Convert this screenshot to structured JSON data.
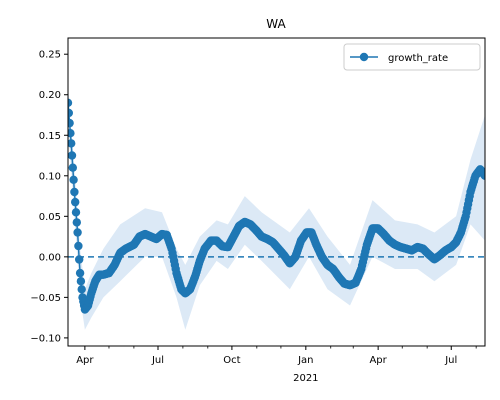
{
  "chart_data": {
    "type": "line",
    "title": "WA",
    "xlabel": "",
    "ylabel": "",
    "legend": {
      "entries": [
        "growth_rate"
      ],
      "placement": "top-right"
    },
    "x_range": [
      "2020-03-11",
      "2021-08-12"
    ],
    "ylim": [
      -0.11,
      0.27
    ],
    "y_ticks": [
      -0.1,
      -0.05,
      0.0,
      0.05,
      0.1,
      0.15,
      0.2,
      0.25
    ],
    "y_tick_labels": [
      "−0.10",
      "−0.05",
      "0.00",
      "0.05",
      "0.10",
      "0.15",
      "0.20",
      "0.25"
    ],
    "x_major_ticks": [
      {
        "date": "2020-04-01",
        "label": "Apr"
      },
      {
        "date": "2020-07-01",
        "label": "Jul"
      },
      {
        "date": "2020-10-01",
        "label": "Oct"
      },
      {
        "date": "2021-01-01",
        "label": "Jan"
      },
      {
        "date": "2021-04-01",
        "label": "Apr"
      },
      {
        "date": "2021-07-01",
        "label": "Jul"
      }
    ],
    "x_minor_ticks": [
      "2020-05-01",
      "2020-06-01",
      "2020-08-01",
      "2020-09-01",
      "2020-11-01",
      "2020-12-01",
      "2021-02-01",
      "2021-03-01",
      "2021-05-01",
      "2021-06-01",
      "2021-08-01"
    ],
    "x_year_label": {
      "date": "2021-01-01",
      "label": "2021"
    },
    "reference_line": {
      "y": 0,
      "style": "dashed"
    },
    "colors": {
      "series": "#1f77b4",
      "band": "#dce9f6"
    },
    "series": [
      {
        "name": "growth_rate",
        "points": [
          {
            "x": "2020-03-11",
            "y": 0.19
          },
          {
            "x": "2020-03-15",
            "y": 0.14
          },
          {
            "x": "2020-03-19",
            "y": 0.08
          },
          {
            "x": "2020-03-23",
            "y": 0.03
          },
          {
            "x": "2020-03-26",
            "y": -0.02
          },
          {
            "x": "2020-03-29",
            "y": -0.05
          },
          {
            "x": "2020-04-01",
            "y": -0.065
          },
          {
            "x": "2020-04-05",
            "y": -0.06
          },
          {
            "x": "2020-04-09",
            "y": -0.045
          },
          {
            "x": "2020-04-14",
            "y": -0.03
          },
          {
            "x": "2020-04-19",
            "y": -0.022
          },
          {
            "x": "2020-04-24",
            "y": -0.022
          },
          {
            "x": "2020-05-01",
            "y": -0.02
          },
          {
            "x": "2020-05-08",
            "y": -0.01
          },
          {
            "x": "2020-05-15",
            "y": 0.005
          },
          {
            "x": "2020-05-22",
            "y": 0.01
          },
          {
            "x": "2020-06-01",
            "y": 0.015
          },
          {
            "x": "2020-06-08",
            "y": 0.025
          },
          {
            "x": "2020-06-15",
            "y": 0.028
          },
          {
            "x": "2020-06-22",
            "y": 0.025
          },
          {
            "x": "2020-06-29",
            "y": 0.022
          },
          {
            "x": "2020-07-06",
            "y": 0.028
          },
          {
            "x": "2020-07-12",
            "y": 0.027
          },
          {
            "x": "2020-07-18",
            "y": 0.01
          },
          {
            "x": "2020-07-24",
            "y": -0.02
          },
          {
            "x": "2020-07-30",
            "y": -0.04
          },
          {
            "x": "2020-08-04",
            "y": -0.045
          },
          {
            "x": "2020-08-10",
            "y": -0.04
          },
          {
            "x": "2020-08-16",
            "y": -0.025
          },
          {
            "x": "2020-08-22",
            "y": -0.005
          },
          {
            "x": "2020-08-28",
            "y": 0.01
          },
          {
            "x": "2020-09-05",
            "y": 0.02
          },
          {
            "x": "2020-09-12",
            "y": 0.02
          },
          {
            "x": "2020-09-19",
            "y": 0.013
          },
          {
            "x": "2020-09-26",
            "y": 0.012
          },
          {
            "x": "2020-10-03",
            "y": 0.025
          },
          {
            "x": "2020-10-10",
            "y": 0.038
          },
          {
            "x": "2020-10-17",
            "y": 0.043
          },
          {
            "x": "2020-10-24",
            "y": 0.04
          },
          {
            "x": "2020-10-31",
            "y": 0.033
          },
          {
            "x": "2020-11-07",
            "y": 0.025
          },
          {
            "x": "2020-11-14",
            "y": 0.022
          },
          {
            "x": "2020-11-21",
            "y": 0.018
          },
          {
            "x": "2020-11-28",
            "y": 0.01
          },
          {
            "x": "2020-12-05",
            "y": 0.002
          },
          {
            "x": "2020-12-12",
            "y": -0.008
          },
          {
            "x": "2020-12-19",
            "y": 0.0
          },
          {
            "x": "2020-12-26",
            "y": 0.02
          },
          {
            "x": "2021-01-02",
            "y": 0.03
          },
          {
            "x": "2021-01-08",
            "y": 0.03
          },
          {
            "x": "2021-01-14",
            "y": 0.015
          },
          {
            "x": "2021-01-21",
            "y": 0.0
          },
          {
            "x": "2021-01-28",
            "y": -0.01
          },
          {
            "x": "2021-02-04",
            "y": -0.015
          },
          {
            "x": "2021-02-11",
            "y": -0.025
          },
          {
            "x": "2021-02-18",
            "y": -0.033
          },
          {
            "x": "2021-02-25",
            "y": -0.035
          },
          {
            "x": "2021-03-04",
            "y": -0.032
          },
          {
            "x": "2021-03-11",
            "y": -0.015
          },
          {
            "x": "2021-03-18",
            "y": 0.015
          },
          {
            "x": "2021-03-25",
            "y": 0.035
          },
          {
            "x": "2021-04-01",
            "y": 0.035
          },
          {
            "x": "2021-04-08",
            "y": 0.028
          },
          {
            "x": "2021-04-15",
            "y": 0.02
          },
          {
            "x": "2021-04-22",
            "y": 0.015
          },
          {
            "x": "2021-04-29",
            "y": 0.012
          },
          {
            "x": "2021-05-06",
            "y": 0.01
          },
          {
            "x": "2021-05-13",
            "y": 0.008
          },
          {
            "x": "2021-05-20",
            "y": 0.012
          },
          {
            "x": "2021-05-27",
            "y": 0.01
          },
          {
            "x": "2021-06-03",
            "y": 0.003
          },
          {
            "x": "2021-06-10",
            "y": -0.003
          },
          {
            "x": "2021-06-17",
            "y": 0.002
          },
          {
            "x": "2021-06-24",
            "y": 0.008
          },
          {
            "x": "2021-07-01",
            "y": 0.012
          },
          {
            "x": "2021-07-07",
            "y": 0.018
          },
          {
            "x": "2021-07-13",
            "y": 0.03
          },
          {
            "x": "2021-07-19",
            "y": 0.05
          },
          {
            "x": "2021-07-25",
            "y": 0.08
          },
          {
            "x": "2021-07-31",
            "y": 0.1
          },
          {
            "x": "2021-08-06",
            "y": 0.108
          },
          {
            "x": "2021-08-12",
            "y": 0.1
          }
        ]
      }
    ],
    "confidence_band": [
      {
        "x": "2020-03-11",
        "lo": 0.16,
        "hi": 0.21
      },
      {
        "x": "2020-03-19",
        "lo": 0.05,
        "hi": 0.11
      },
      {
        "x": "2020-03-26",
        "lo": -0.05,
        "hi": 0.01
      },
      {
        "x": "2020-04-01",
        "lo": -0.09,
        "hi": -0.04
      },
      {
        "x": "2020-04-09",
        "lo": -0.075,
        "hi": -0.02
      },
      {
        "x": "2020-04-24",
        "lo": -0.05,
        "hi": 0.01
      },
      {
        "x": "2020-05-15",
        "lo": -0.03,
        "hi": 0.04
      },
      {
        "x": "2020-06-15",
        "lo": 0.0,
        "hi": 0.06
      },
      {
        "x": "2020-07-06",
        "lo": 0.0,
        "hi": 0.055
      },
      {
        "x": "2020-07-24",
        "lo": -0.05,
        "hi": 0.01
      },
      {
        "x": "2020-08-04",
        "lo": -0.09,
        "hi": -0.01
      },
      {
        "x": "2020-08-22",
        "lo": -0.035,
        "hi": 0.025
      },
      {
        "x": "2020-09-12",
        "lo": -0.005,
        "hi": 0.045
      },
      {
        "x": "2020-09-26",
        "lo": -0.015,
        "hi": 0.04
      },
      {
        "x": "2020-10-17",
        "lo": 0.015,
        "hi": 0.075
      },
      {
        "x": "2020-11-07",
        "lo": -0.005,
        "hi": 0.055
      },
      {
        "x": "2020-12-12",
        "lo": -0.04,
        "hi": 0.03
      },
      {
        "x": "2021-01-05",
        "lo": 0.0,
        "hi": 0.06
      },
      {
        "x": "2021-01-28",
        "lo": -0.04,
        "hi": 0.025
      },
      {
        "x": "2021-02-25",
        "lo": -0.06,
        "hi": -0.01
      },
      {
        "x": "2021-03-25",
        "lo": 0.0,
        "hi": 0.07
      },
      {
        "x": "2021-04-22",
        "lo": -0.015,
        "hi": 0.045
      },
      {
        "x": "2021-05-20",
        "lo": -0.015,
        "hi": 0.04
      },
      {
        "x": "2021-06-10",
        "lo": -0.03,
        "hi": 0.03
      },
      {
        "x": "2021-07-07",
        "lo": -0.01,
        "hi": 0.05
      },
      {
        "x": "2021-07-25",
        "lo": 0.04,
        "hi": 0.12
      },
      {
        "x": "2021-08-12",
        "lo": 0.02,
        "hi": 0.175
      }
    ]
  }
}
